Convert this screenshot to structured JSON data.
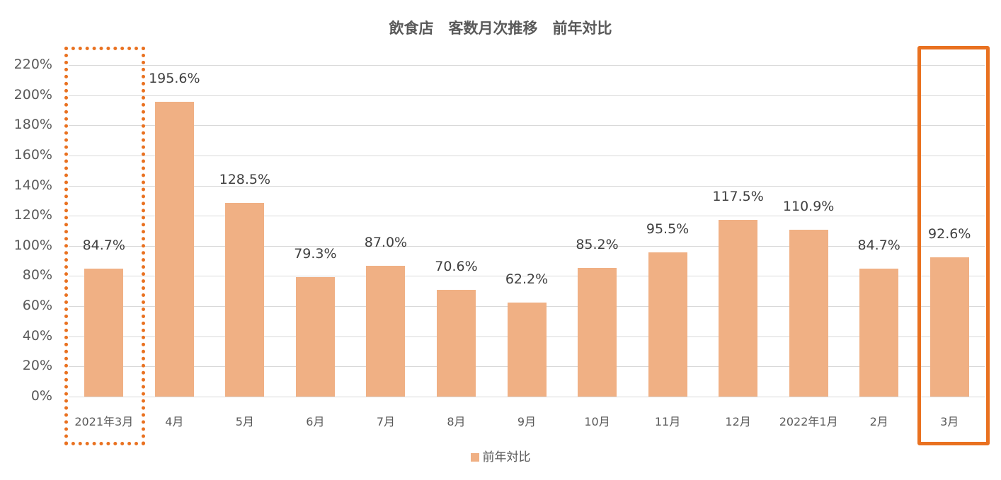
{
  "chart_data": {
    "type": "bar",
    "title": "飲食店　客数月次推移　前年対比",
    "categories": [
      "2021年3月",
      "4月",
      "5月",
      "6月",
      "7月",
      "8月",
      "9月",
      "10月",
      "11月",
      "12月",
      "2022年1月",
      "2月",
      "3月"
    ],
    "series": [
      {
        "name": "前年対比",
        "values": [
          84.7,
          195.6,
          128.5,
          79.3,
          87.0,
          70.6,
          62.2,
          85.2,
          95.5,
          117.5,
          110.9,
          84.7,
          92.6
        ],
        "color": "#f0b084"
      }
    ],
    "data_labels": [
      "84.7%",
      "195.6%",
      "128.5%",
      "79.3%",
      "87.0%",
      "70.6%",
      "62.2%",
      "85.2%",
      "95.5%",
      "117.5%",
      "110.9%",
      "84.7%",
      "92.6%"
    ],
    "xlabel": "",
    "ylabel": "",
    "ylim": [
      0,
      220
    ],
    "yticks": [
      "0%",
      "20%",
      "40%",
      "60%",
      "80%",
      "100%",
      "120%",
      "140%",
      "160%",
      "180%",
      "200%",
      "220%"
    ],
    "grid": true,
    "legend_position": "bottom",
    "annotations": [
      {
        "type": "dotted-box",
        "target": "2021年3月",
        "color": "#e97120"
      },
      {
        "type": "solid-box",
        "target": "3月",
        "color": "#e97120"
      }
    ]
  },
  "legend": {
    "label": "前年対比",
    "color": "#f0b084"
  }
}
